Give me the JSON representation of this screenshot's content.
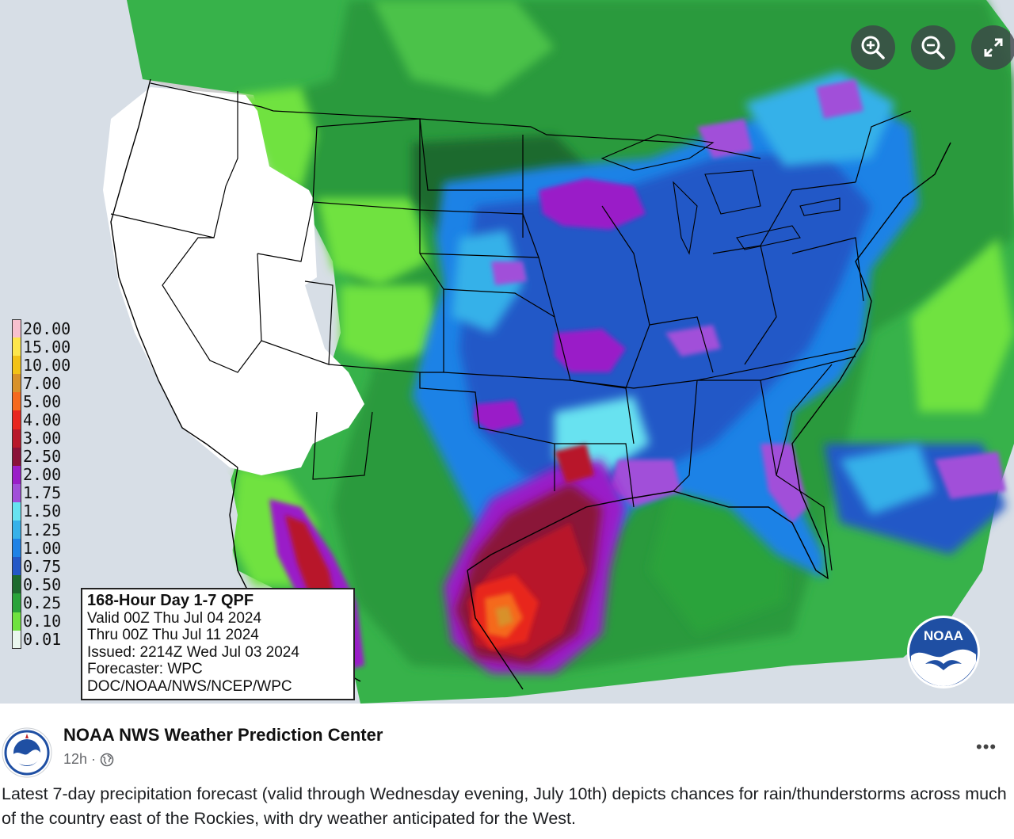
{
  "map": {
    "colors": {
      "land_dry": "#ffffff",
      "no_data": "#cfcfcf",
      "ocean": "#d7dee6",
      "boundaries": "#000000"
    },
    "legend": [
      {
        "label": "20.00",
        "color": "#f7c0ce"
      },
      {
        "label": "15.00",
        "color": "#fde64b"
      },
      {
        "label": "10.00",
        "color": "#f2c217"
      },
      {
        "label": "7.00",
        "color": "#d8912a"
      },
      {
        "label": "5.00",
        "color": "#f5691e"
      },
      {
        "label": "4.00",
        "color": "#e8271f"
      },
      {
        "label": "3.00",
        "color": "#b8182b"
      },
      {
        "label": "2.50",
        "color": "#8a1239"
      },
      {
        "label": "2.00",
        "color": "#9a1ec8"
      },
      {
        "label": "1.75",
        "color": "#a14fd9"
      },
      {
        "label": "1.50",
        "color": "#67e2f0"
      },
      {
        "label": "1.25",
        "color": "#36b1e9"
      },
      {
        "label": "1.00",
        "color": "#1e82e6"
      },
      {
        "label": "0.75",
        "color": "#2458c7"
      },
      {
        "label": "0.50",
        "color": "#1d6a2e"
      },
      {
        "label": "0.25",
        "color": "#29a33a"
      },
      {
        "label": "0.10",
        "color": "#6fe240"
      },
      {
        "label": "0.01",
        "color": "#e9f6ee"
      }
    ],
    "info_box": {
      "title": "168-Hour Day 1-7 QPF",
      "valid": "Valid 00Z Thu Jul 04 2024",
      "thru": "Thru 00Z Thu Jul 11 2024",
      "issued": "Issued: 2214Z Wed Jul 03 2024",
      "forecaster": "Forecaster: WPC",
      "agency": "DOC/NOAA/NWS/NCEP/WPC"
    },
    "logo_text": "NOAA",
    "controls": {
      "zoom_in_icon": "zoom-in-icon",
      "zoom_out_icon": "zoom-out-icon",
      "fullscreen_icon": "expand-icon"
    }
  },
  "post": {
    "page_name": "NOAA NWS Weather Prediction Center",
    "time": "12h",
    "separator": "·",
    "audience_icon": "globe-icon",
    "more_label": "•••",
    "caption": "Latest 7-day precipitation forecast (valid through Wednesday evening, July 10th) depicts chances for rain/thunderstorms across much of the country east of the Rockies, with dry weather anticipated for the West."
  }
}
